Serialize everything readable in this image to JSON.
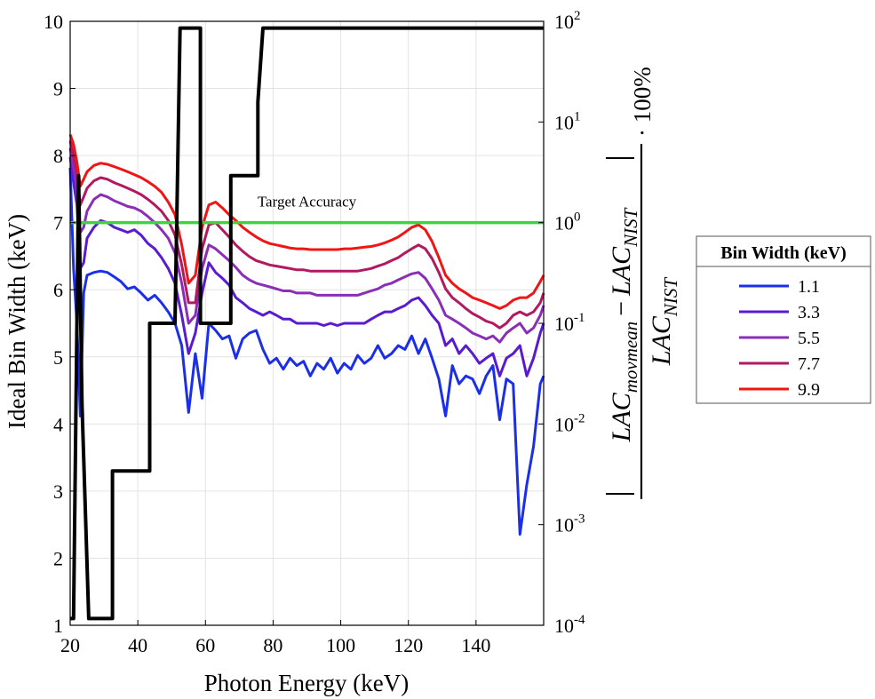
{
  "chart_data": {
    "type": "line",
    "xlabel": "Photon Energy (keV)",
    "ylabel": "Ideal Bin Width (keV)",
    "ylabel_right": "|LAC_movmean − LAC_NIST| / LAC_NIST · 100%",
    "ylabel_right_parts": {
      "num_a": "LAC",
      "num_a_sub": "movmean",
      "minus": "−",
      "num_b": "LAC",
      "num_b_sub": "NIST",
      "den": "LAC",
      "den_sub": "NIST",
      "suffix": "· 100%"
    },
    "xlim": [
      20,
      160
    ],
    "ylim_left": [
      1,
      10
    ],
    "ylim_right_log10": [
      -4,
      2
    ],
    "x_ticks": [
      20,
      40,
      60,
      80,
      100,
      120,
      140
    ],
    "y_ticks_left": [
      1,
      2,
      3,
      4,
      5,
      6,
      7,
      8,
      9,
      10
    ],
    "y_ticks_right": [
      {
        "base": "10",
        "exp": "2",
        "value": 100
      },
      {
        "base": "10",
        "exp": "1",
        "value": 10
      },
      {
        "base": "10",
        "exp": "0",
        "value": 1
      },
      {
        "base": "10",
        "exp": "-1",
        "value": 0.1
      },
      {
        "base": "10",
        "exp": "-2",
        "value": 0.01
      },
      {
        "base": "10",
        "exp": "-3",
        "value": 0.001
      },
      {
        "base": "10",
        "exp": "-4",
        "value": 0.0001
      }
    ],
    "grid": true,
    "annotation": {
      "text": "Target Accuracy",
      "x": 90,
      "y_right": 1.45
    },
    "target_accuracy": {
      "value": 1,
      "color": "#3dd53d"
    },
    "ideal_bin_width": {
      "color": "#000000",
      "axis": "left",
      "x": [
        20,
        21,
        22.5,
        23.5,
        25.5,
        25.5,
        28.5,
        32.5,
        32.5,
        33,
        43.5,
        43.5,
        44.5,
        51,
        51,
        52.5,
        58.5,
        58.5,
        59.5,
        67.5,
        67.5,
        68.5,
        75.5,
        75.5,
        77,
        160
      ],
      "y": [
        1.1,
        1.1,
        7.7,
        4.3,
        1.1,
        1.1,
        1.1,
        1.1,
        3.3,
        3.3,
        3.3,
        5.5,
        5.5,
        5.5,
        5.5,
        9.9,
        9.9,
        5.5,
        5.5,
        5.5,
        7.7,
        7.7,
        7.7,
        8.8,
        9.9,
        9.9
      ]
    },
    "legend": {
      "title": "Bin Width (keV)",
      "position": "right"
    },
    "x": [
      20,
      21,
      22,
      23,
      24,
      25,
      27,
      29,
      31,
      33,
      35,
      37,
      39,
      41,
      43,
      45,
      47,
      49,
      51,
      53,
      55,
      57,
      59,
      61,
      63,
      65,
      67,
      69,
      71,
      73,
      75,
      77,
      79,
      81,
      83,
      85,
      87,
      89,
      91,
      93,
      95,
      97,
      99,
      101,
      103,
      105,
      107,
      109,
      111,
      113,
      115,
      117,
      119,
      121,
      123,
      125,
      127,
      129,
      131,
      133,
      135,
      137,
      139,
      141,
      143,
      145,
      147,
      149,
      151,
      153,
      155,
      157,
      159,
      160
    ],
    "series": [
      {
        "name": "1.1",
        "color": "#1c2fe8",
        "values": [
          3.5,
          0.35,
          0.1,
          0.012,
          0.2,
          0.3,
          0.32,
          0.33,
          0.32,
          0.29,
          0.26,
          0.22,
          0.23,
          0.2,
          0.17,
          0.19,
          0.16,
          0.13,
          0.1,
          0.06,
          0.013,
          0.05,
          0.018,
          0.1,
          0.085,
          0.07,
          0.075,
          0.045,
          0.07,
          0.08,
          0.085,
          0.055,
          0.04,
          0.045,
          0.035,
          0.045,
          0.038,
          0.042,
          0.03,
          0.04,
          0.035,
          0.045,
          0.032,
          0.04,
          0.035,
          0.048,
          0.04,
          0.045,
          0.06,
          0.045,
          0.05,
          0.06,
          0.055,
          0.075,
          0.05,
          0.07,
          0.045,
          0.028,
          0.012,
          0.038,
          0.025,
          0.03,
          0.028,
          0.02,
          0.03,
          0.038,
          0.011,
          0.028,
          0.025,
          0.0008,
          0.0025,
          0.006,
          0.025,
          0.03
        ]
      },
      {
        "name": "3.3",
        "color": "#5a1bd0",
        "values": [
          4.5,
          2.5,
          1.5,
          0.35,
          0.4,
          0.7,
          0.9,
          1.05,
          1.0,
          0.9,
          0.85,
          0.8,
          0.85,
          0.75,
          0.62,
          0.55,
          0.45,
          0.35,
          0.25,
          0.12,
          0.05,
          0.08,
          0.2,
          0.4,
          0.32,
          0.28,
          0.24,
          0.18,
          0.16,
          0.14,
          0.13,
          0.12,
          0.13,
          0.12,
          0.11,
          0.11,
          0.1,
          0.1,
          0.1,
          0.1,
          0.095,
          0.1,
          0.095,
          0.1,
          0.1,
          0.1,
          0.1,
          0.11,
          0.12,
          0.13,
          0.13,
          0.14,
          0.15,
          0.17,
          0.18,
          0.15,
          0.12,
          0.1,
          0.06,
          0.07,
          0.05,
          0.06,
          0.05,
          0.04,
          0.045,
          0.05,
          0.03,
          0.045,
          0.05,
          0.06,
          0.03,
          0.045,
          0.08,
          0.1
        ]
      },
      {
        "name": "5.5",
        "color": "#8a2eb8",
        "values": [
          5.5,
          3.5,
          2.2,
          0.8,
          0.9,
          1.3,
          1.7,
          1.9,
          1.8,
          1.65,
          1.55,
          1.45,
          1.4,
          1.3,
          1.15,
          1.0,
          0.85,
          0.7,
          0.5,
          0.25,
          0.1,
          0.12,
          0.35,
          0.6,
          0.55,
          0.48,
          0.42,
          0.36,
          0.3,
          0.27,
          0.25,
          0.24,
          0.23,
          0.22,
          0.21,
          0.21,
          0.2,
          0.2,
          0.2,
          0.19,
          0.19,
          0.19,
          0.19,
          0.19,
          0.19,
          0.19,
          0.2,
          0.21,
          0.22,
          0.24,
          0.25,
          0.27,
          0.29,
          0.31,
          0.32,
          0.28,
          0.22,
          0.17,
          0.12,
          0.11,
          0.1,
          0.09,
          0.08,
          0.075,
          0.07,
          0.075,
          0.065,
          0.08,
          0.09,
          0.1,
          0.08,
          0.09,
          0.12,
          0.15
        ]
      },
      {
        "name": "7.7",
        "color": "#b01a60",
        "values": [
          6.5,
          4.5,
          3.0,
          1.5,
          1.8,
          2.2,
          2.6,
          2.8,
          2.7,
          2.5,
          2.35,
          2.2,
          2.05,
          1.9,
          1.7,
          1.5,
          1.3,
          1.05,
          0.75,
          0.38,
          0.16,
          0.16,
          0.55,
          0.95,
          1.0,
          0.85,
          0.72,
          0.6,
          0.52,
          0.46,
          0.42,
          0.4,
          0.38,
          0.37,
          0.36,
          0.35,
          0.34,
          0.34,
          0.33,
          0.33,
          0.33,
          0.33,
          0.33,
          0.33,
          0.33,
          0.33,
          0.34,
          0.35,
          0.37,
          0.39,
          0.42,
          0.45,
          0.5,
          0.55,
          0.6,
          0.55,
          0.44,
          0.32,
          0.22,
          0.18,
          0.16,
          0.14,
          0.125,
          0.115,
          0.105,
          0.1,
          0.09,
          0.1,
          0.12,
          0.13,
          0.12,
          0.13,
          0.16,
          0.2
        ]
      },
      {
        "name": "9.9",
        "color": "#f01515",
        "values": [
          7.5,
          6.0,
          4.0,
          2.3,
          2.7,
          3.2,
          3.7,
          3.9,
          3.8,
          3.6,
          3.4,
          3.2,
          3.0,
          2.8,
          2.55,
          2.3,
          2.0,
          1.6,
          1.2,
          0.6,
          0.25,
          0.3,
          0.9,
          1.5,
          1.6,
          1.4,
          1.2,
          1.05,
          0.9,
          0.8,
          0.72,
          0.66,
          0.62,
          0.6,
          0.58,
          0.56,
          0.55,
          0.55,
          0.54,
          0.54,
          0.54,
          0.54,
          0.54,
          0.55,
          0.55,
          0.56,
          0.57,
          0.58,
          0.6,
          0.63,
          0.67,
          0.72,
          0.8,
          0.9,
          0.95,
          0.85,
          0.65,
          0.45,
          0.3,
          0.25,
          0.22,
          0.2,
          0.18,
          0.17,
          0.16,
          0.15,
          0.14,
          0.15,
          0.17,
          0.18,
          0.18,
          0.2,
          0.26,
          0.3
        ]
      }
    ]
  }
}
